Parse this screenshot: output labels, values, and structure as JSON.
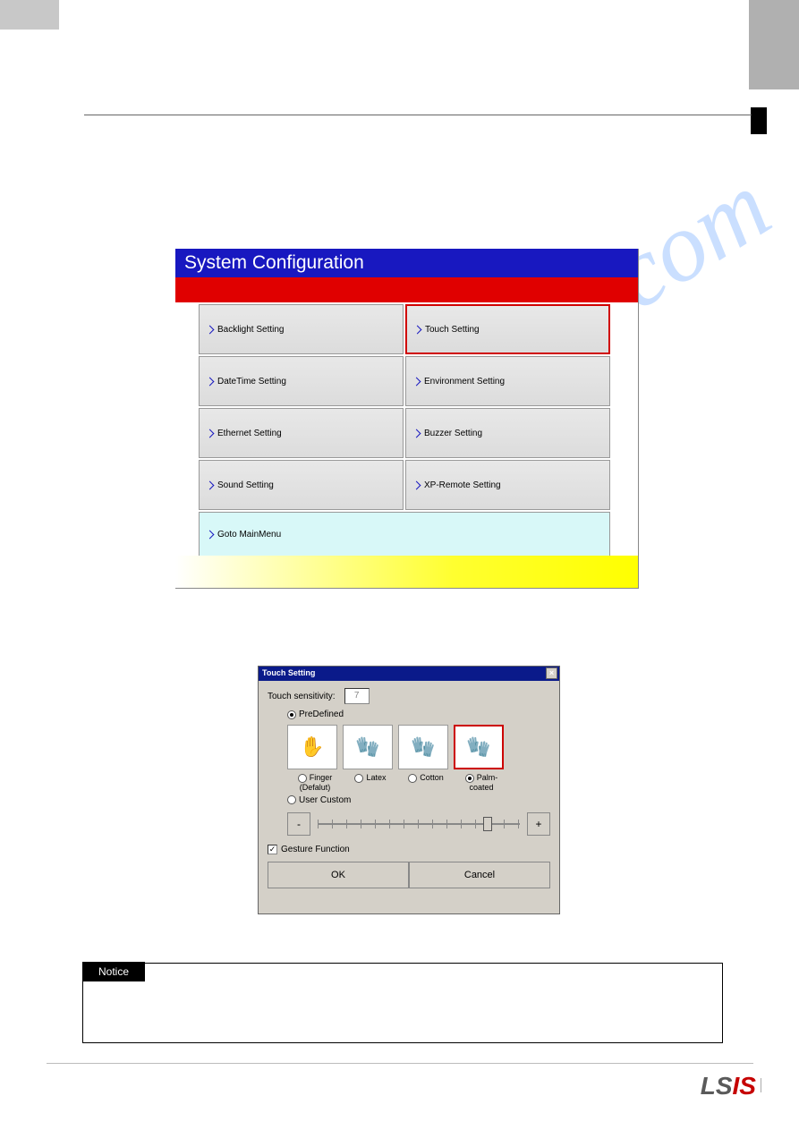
{
  "watermark": "manualshive.com",
  "sc": {
    "title": "System Configuration",
    "cells": [
      {
        "label": "Backlight Setting",
        "col": 0,
        "row": 0,
        "hl": false
      },
      {
        "label": "Touch Setting",
        "col": 1,
        "row": 0,
        "hl": true
      },
      {
        "label": "DateTime Setting",
        "col": 0,
        "row": 1,
        "hl": false
      },
      {
        "label": "Environment Setting",
        "col": 1,
        "row": 1,
        "hl": false
      },
      {
        "label": "Ethernet Setting",
        "col": 0,
        "row": 2,
        "hl": false
      },
      {
        "label": "Buzzer Setting",
        "col": 1,
        "row": 2,
        "hl": false
      },
      {
        "label": "Sound Setting",
        "col": 0,
        "row": 3,
        "hl": false
      },
      {
        "label": "XP-Remote Setting",
        "col": 1,
        "row": 3,
        "hl": false
      }
    ],
    "mainmenu": "Goto MainMenu"
  },
  "ts": {
    "title": "Touch Setting",
    "sens_label": "Touch sensitivity:",
    "sens_val": "7",
    "predef": "PreDefined",
    "opts": [
      {
        "glyph": "✋",
        "label_1": "Finger",
        "label_2": "(Defalut)",
        "sel": false
      },
      {
        "glyph": "🧤",
        "label_1": "Latex",
        "label_2": "",
        "sel": false
      },
      {
        "glyph": "🧤",
        "label_1": "Cotton",
        "label_2": "",
        "sel": false
      },
      {
        "glyph": "🧤",
        "label_1": "Palm-coated",
        "label_2": "",
        "sel": true
      }
    ],
    "usercustom": "User Custom",
    "minus": "-",
    "plus": "+",
    "gesture": "Gesture Function",
    "ok": "OK",
    "cancel": "Cancel"
  },
  "notice_label": "Notice",
  "logo_main": "LS",
  "logo_red": "IS"
}
